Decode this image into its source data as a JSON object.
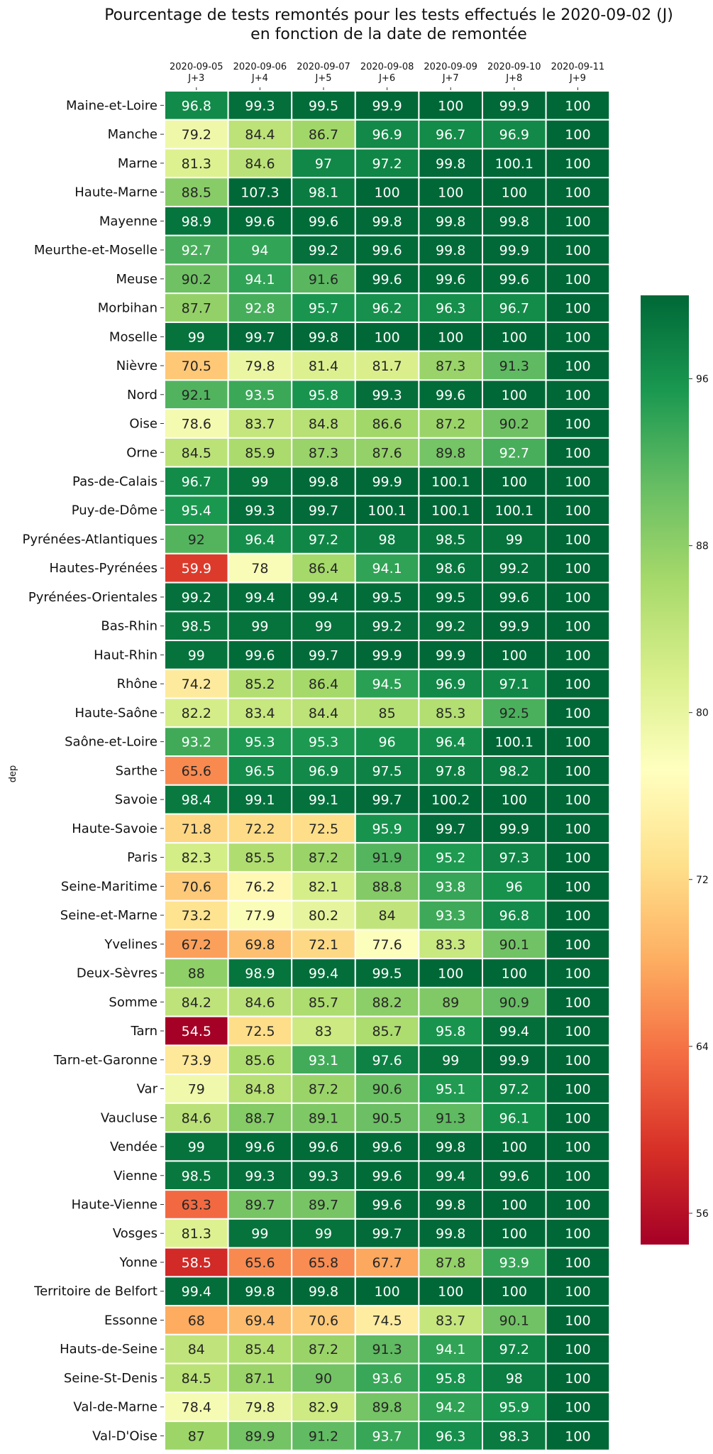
{
  "chart_data": {
    "type": "heatmap",
    "title": "Pourcentage de tests remontés pour les tests effectués le 2020-09-02 (J)",
    "subtitle": "en fonction de la date de remontée",
    "ylabel": "dep",
    "columns": [
      {
        "date": "2020-09-05",
        "offset": "J+3"
      },
      {
        "date": "2020-09-06",
        "offset": "J+4"
      },
      {
        "date": "2020-09-07",
        "offset": "J+5"
      },
      {
        "date": "2020-09-08",
        "offset": "J+6"
      },
      {
        "date": "2020-09-09",
        "offset": "J+7"
      },
      {
        "date": "2020-09-10",
        "offset": "J+8"
      },
      {
        "date": "2020-09-11",
        "offset": "J+9"
      }
    ],
    "rows": [
      {
        "dep": "Maine-et-Loire",
        "values": [
          "96.8",
          "99.3",
          "99.5",
          "99.9",
          "100",
          "99.9",
          "100"
        ]
      },
      {
        "dep": "Manche",
        "values": [
          "79.2",
          "84.4",
          "86.7",
          "96.9",
          "96.7",
          "96.9",
          "100"
        ]
      },
      {
        "dep": "Marne",
        "values": [
          "81.3",
          "84.6",
          "97",
          "97.2",
          "99.8",
          "100.1",
          "100"
        ]
      },
      {
        "dep": "Haute-Marne",
        "values": [
          "88.5",
          "107.3",
          "98.1",
          "100",
          "100",
          "100",
          "100"
        ]
      },
      {
        "dep": "Mayenne",
        "values": [
          "98.9",
          "99.6",
          "99.6",
          "99.8",
          "99.8",
          "99.8",
          "100"
        ]
      },
      {
        "dep": "Meurthe-et-Moselle",
        "values": [
          "92.7",
          "94",
          "99.2",
          "99.6",
          "99.8",
          "99.9",
          "100"
        ]
      },
      {
        "dep": "Meuse",
        "values": [
          "90.2",
          "94.1",
          "91.6",
          "99.6",
          "99.6",
          "99.6",
          "100"
        ]
      },
      {
        "dep": "Morbihan",
        "values": [
          "87.7",
          "92.8",
          "95.7",
          "96.2",
          "96.3",
          "96.7",
          "100"
        ]
      },
      {
        "dep": "Moselle",
        "values": [
          "99",
          "99.7",
          "99.8",
          "100",
          "100",
          "100",
          "100"
        ]
      },
      {
        "dep": "Nièvre",
        "values": [
          "70.5",
          "79.8",
          "81.4",
          "81.7",
          "87.3",
          "91.3",
          "100"
        ]
      },
      {
        "dep": "Nord",
        "values": [
          "92.1",
          "93.5",
          "95.8",
          "99.3",
          "99.6",
          "100",
          "100"
        ]
      },
      {
        "dep": "Oise",
        "values": [
          "78.6",
          "83.7",
          "84.8",
          "86.6",
          "87.2",
          "90.2",
          "100"
        ]
      },
      {
        "dep": "Orne",
        "values": [
          "84.5",
          "85.9",
          "87.3",
          "87.6",
          "89.8",
          "92.7",
          "100"
        ]
      },
      {
        "dep": "Pas-de-Calais",
        "values": [
          "96.7",
          "99",
          "99.8",
          "99.9",
          "100.1",
          "100",
          "100"
        ]
      },
      {
        "dep": "Puy-de-Dôme",
        "values": [
          "95.4",
          "99.3",
          "99.7",
          "100.1",
          "100.1",
          "100.1",
          "100"
        ]
      },
      {
        "dep": "Pyrénées-Atlantiques",
        "values": [
          "92",
          "96.4",
          "97.2",
          "98",
          "98.5",
          "99",
          "100"
        ]
      },
      {
        "dep": "Hautes-Pyrénées",
        "values": [
          "59.9",
          "78",
          "86.4",
          "94.1",
          "98.6",
          "99.2",
          "100"
        ]
      },
      {
        "dep": "Pyrénées-Orientales",
        "values": [
          "99.2",
          "99.4",
          "99.4",
          "99.5",
          "99.5",
          "99.6",
          "100"
        ]
      },
      {
        "dep": "Bas-Rhin",
        "values": [
          "98.5",
          "99",
          "99",
          "99.2",
          "99.2",
          "99.9",
          "100"
        ]
      },
      {
        "dep": "Haut-Rhin",
        "values": [
          "99",
          "99.6",
          "99.7",
          "99.9",
          "99.9",
          "100",
          "100"
        ]
      },
      {
        "dep": "Rhône",
        "values": [
          "74.2",
          "85.2",
          "86.4",
          "94.5",
          "96.9",
          "97.1",
          "100"
        ]
      },
      {
        "dep": "Haute-Saône",
        "values": [
          "82.2",
          "83.4",
          "84.4",
          "85",
          "85.3",
          "92.5",
          "100"
        ]
      },
      {
        "dep": "Saône-et-Loire",
        "values": [
          "93.2",
          "95.3",
          "95.3",
          "96",
          "96.4",
          "100.1",
          "100"
        ]
      },
      {
        "dep": "Sarthe",
        "values": [
          "65.6",
          "96.5",
          "96.9",
          "97.5",
          "97.8",
          "98.2",
          "100"
        ]
      },
      {
        "dep": "Savoie",
        "values": [
          "98.4",
          "99.1",
          "99.1",
          "99.7",
          "100.2",
          "100",
          "100"
        ]
      },
      {
        "dep": "Haute-Savoie",
        "values": [
          "71.8",
          "72.2",
          "72.5",
          "95.9",
          "99.7",
          "99.9",
          "100"
        ]
      },
      {
        "dep": "Paris",
        "values": [
          "82.3",
          "85.5",
          "87.2",
          "91.9",
          "95.2",
          "97.3",
          "100"
        ]
      },
      {
        "dep": "Seine-Maritime",
        "values": [
          "70.6",
          "76.2",
          "82.1",
          "88.8",
          "93.8",
          "96",
          "100"
        ]
      },
      {
        "dep": "Seine-et-Marne",
        "values": [
          "73.2",
          "77.9",
          "80.2",
          "84",
          "93.3",
          "96.8",
          "100"
        ]
      },
      {
        "dep": "Yvelines",
        "values": [
          "67.2",
          "69.8",
          "72.1",
          "77.6",
          "83.3",
          "90.1",
          "100"
        ]
      },
      {
        "dep": "Deux-Sèvres",
        "values": [
          "88",
          "98.9",
          "99.4",
          "99.5",
          "100",
          "100",
          "100"
        ]
      },
      {
        "dep": "Somme",
        "values": [
          "84.2",
          "84.6",
          "85.7",
          "88.2",
          "89",
          "90.9",
          "100"
        ]
      },
      {
        "dep": "Tarn",
        "values": [
          "54.5",
          "72.5",
          "83",
          "85.7",
          "95.8",
          "99.4",
          "100"
        ]
      },
      {
        "dep": "Tarn-et-Garonne",
        "values": [
          "73.9",
          "85.6",
          "93.1",
          "97.6",
          "99",
          "99.9",
          "100"
        ]
      },
      {
        "dep": "Var",
        "values": [
          "79",
          "84.8",
          "87.2",
          "90.6",
          "95.1",
          "97.2",
          "100"
        ]
      },
      {
        "dep": "Vaucluse",
        "values": [
          "84.6",
          "88.7",
          "89.1",
          "90.5",
          "91.3",
          "96.1",
          "100"
        ]
      },
      {
        "dep": "Vendée",
        "values": [
          "99",
          "99.6",
          "99.6",
          "99.6",
          "99.8",
          "100",
          "100"
        ]
      },
      {
        "dep": "Vienne",
        "values": [
          "98.5",
          "99.3",
          "99.3",
          "99.6",
          "99.4",
          "99.6",
          "100"
        ]
      },
      {
        "dep": "Haute-Vienne",
        "values": [
          "63.3",
          "89.7",
          "89.7",
          "99.6",
          "99.8",
          "100",
          "100"
        ]
      },
      {
        "dep": "Vosges",
        "values": [
          "81.3",
          "99",
          "99",
          "99.7",
          "99.8",
          "100",
          "100"
        ]
      },
      {
        "dep": "Yonne",
        "values": [
          "58.5",
          "65.6",
          "65.8",
          "67.7",
          "87.8",
          "93.9",
          "100"
        ]
      },
      {
        "dep": "Territoire de Belfort",
        "values": [
          "99.4",
          "99.8",
          "99.8",
          "100",
          "100",
          "100",
          "100"
        ]
      },
      {
        "dep": "Essonne",
        "values": [
          "68",
          "69.4",
          "70.6",
          "74.5",
          "83.7",
          "90.1",
          "100"
        ]
      },
      {
        "dep": "Hauts-de-Seine",
        "values": [
          "84",
          "85.4",
          "87.2",
          "91.3",
          "94.1",
          "97.2",
          "100"
        ]
      },
      {
        "dep": "Seine-St-Denis",
        "values": [
          "84.5",
          "87.1",
          "90",
          "93.6",
          "95.8",
          "98",
          "100"
        ]
      },
      {
        "dep": "Val-de-Marne",
        "values": [
          "78.4",
          "79.8",
          "82.9",
          "89.8",
          "94.2",
          "95.9",
          "100"
        ]
      },
      {
        "dep": "Val-D'Oise",
        "values": [
          "87",
          "89.9",
          "91.2",
          "93.7",
          "96.3",
          "98.3",
          "100"
        ]
      }
    ],
    "colorbar": {
      "colormap": "RdYlGn",
      "vmin": 54.5,
      "vmax": 100,
      "ticks": [
        56,
        64,
        72,
        80,
        88,
        96
      ]
    },
    "grid": false,
    "legend": "colorbar-right"
  }
}
